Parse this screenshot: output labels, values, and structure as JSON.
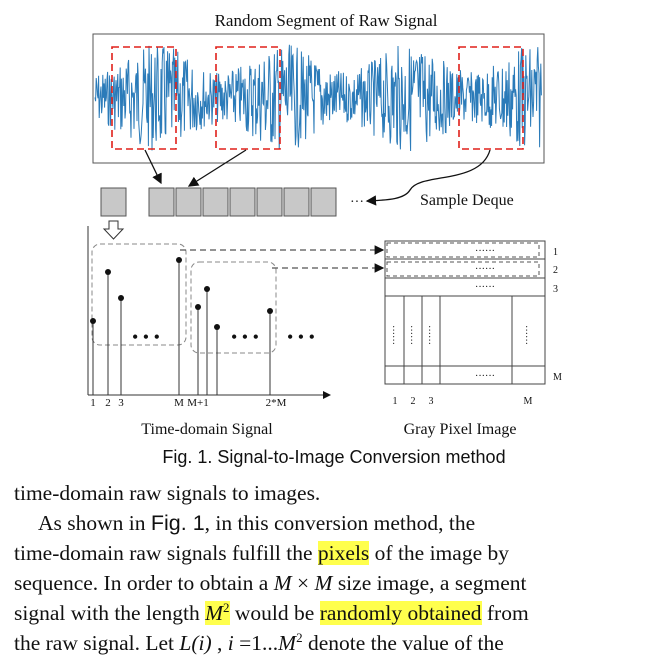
{
  "figure": {
    "signal_title": "Random Segment of Raw Signal",
    "deque_label": "Sample Deque",
    "ellipsis": "···",
    "time_axis_ticks": [
      "1",
      "2",
      "3",
      "M",
      "M+1",
      "2*M"
    ],
    "pixel_axis_ticks": [
      "1",
      "2",
      "3",
      "M"
    ],
    "row_labels": [
      "1",
      "2",
      "3",
      "M"
    ],
    "dots": "······",
    "time_label": "Time-domain Signal",
    "pixel_label": "Gray Pixel Image",
    "caption": "Fig.  1. Signal-to-Image Conversion method",
    "colors": {
      "signal": "#2b7bb9",
      "segment_box": "#e0201a",
      "highlight": "#ffff4d",
      "deque_box": "#c8c8c8"
    }
  },
  "text": {
    "line1": "time-domain raw signals to images.",
    "l2_a": "As shown in ",
    "l2_fig": "Fig.   1",
    "l2_b": ", in this conversion method, the",
    "l3_a": "time-domain raw signals fulfill the ",
    "l3_hl": "pixels",
    "l3_b": " of the image by",
    "l4_a": "sequence. In order to obtain a ",
    "l4_m1": "M",
    "l4_x": " × ",
    "l4_m2": "M",
    "l4_b": " size image, a segment",
    "l5_a": "signal with the length ",
    "l5_m": "M",
    "l5_sup": "2",
    "l5_b": " would be ",
    "l5_hl": "randomly obtained",
    "l5_c": " from",
    "l6_a": "the raw signal. Let ",
    "l6_L": "L",
    "l6_i": "(i)",
    "l6_b": " , ",
    "l6_i2": "i",
    "l6_c": " =1...",
    "l6_m": "M",
    "l6_sup": "2",
    "l6_d": "  denote the value of the"
  }
}
